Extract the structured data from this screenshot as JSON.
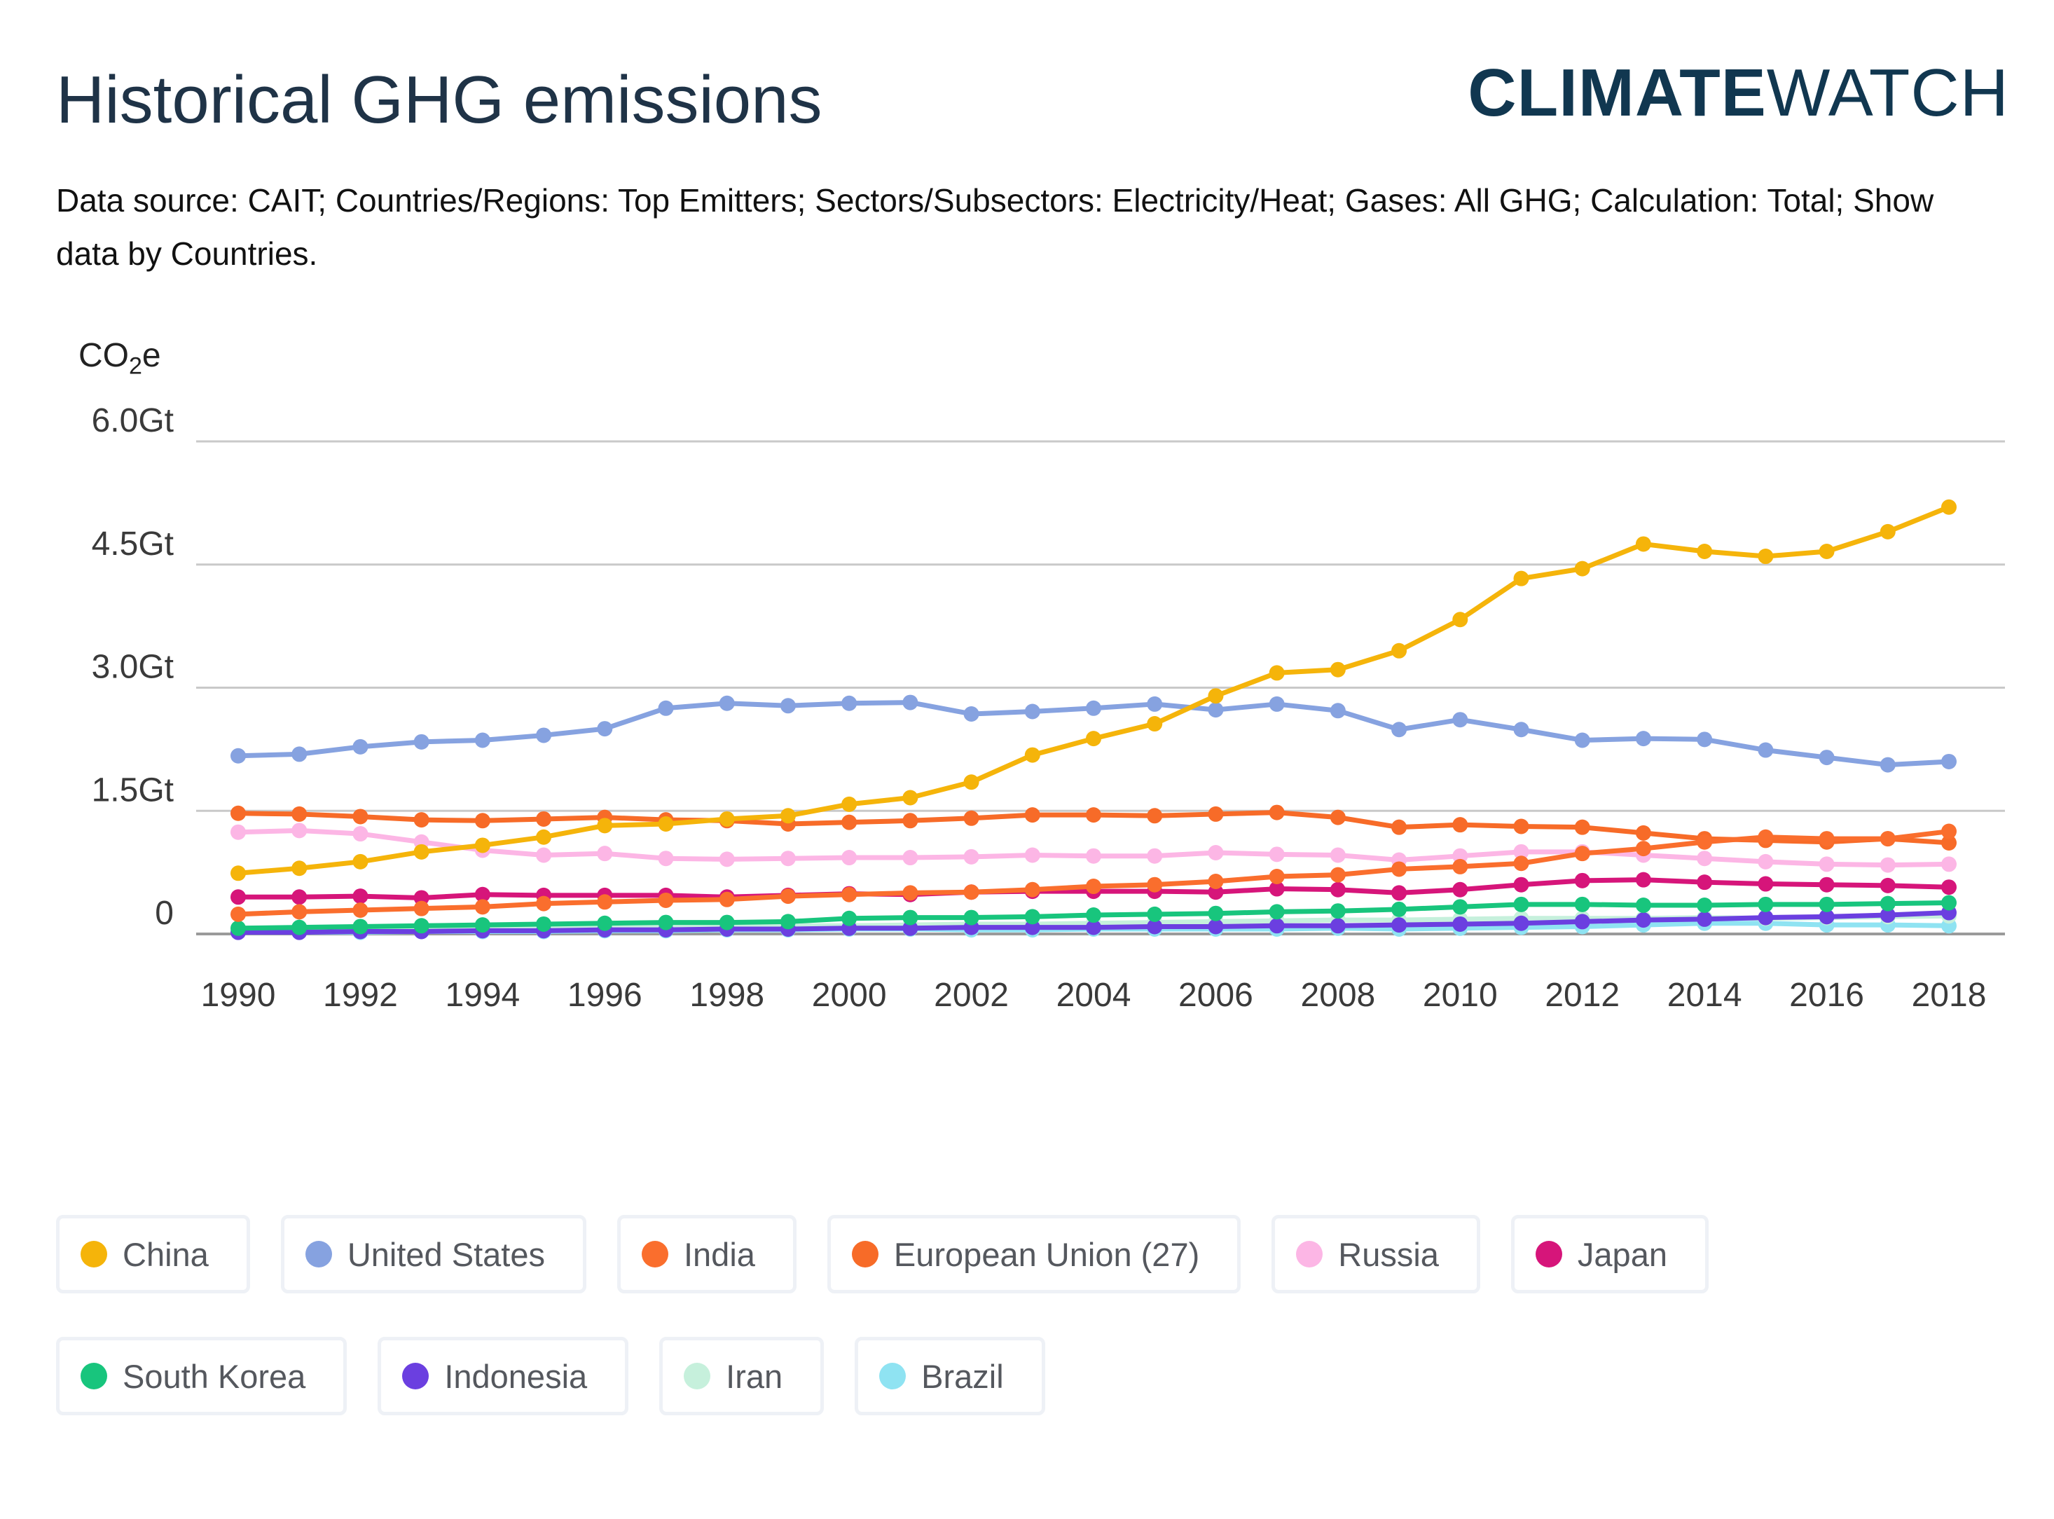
{
  "header": {
    "title": "Historical GHG emissions",
    "brand_bold": "CLIMATE",
    "brand_light": "WATCH",
    "subtitle": "Data source: CAIT; Countries/Regions: Top Emitters; Sectors/Subsectors: Electricity/Heat; Gases: All GHG; Calculation: Total; Show data by Countries."
  },
  "chart_data": {
    "type": "line",
    "title": "Historical GHG emissions",
    "ylabel_prefix": "CO",
    "ylabel_sub": "2",
    "ylabel_suffix": "e",
    "ylim": [
      0,
      6.0
    ],
    "y_ticks": [
      0,
      1.5,
      3.0,
      4.5,
      6.0
    ],
    "y_tick_labels": [
      "0",
      "1.5Gt",
      "3.0Gt",
      "4.5Gt",
      "6.0Gt"
    ],
    "x": [
      1990,
      1991,
      1992,
      1993,
      1994,
      1995,
      1996,
      1997,
      1998,
      1999,
      2000,
      2001,
      2002,
      2003,
      2004,
      2005,
      2006,
      2007,
      2008,
      2009,
      2010,
      2011,
      2012,
      2013,
      2014,
      2015,
      2016,
      2017,
      2018
    ],
    "x_tick_labels": [
      "1990",
      "1992",
      "1994",
      "1996",
      "1998",
      "2000",
      "2002",
      "2004",
      "2006",
      "2008",
      "2010",
      "2012",
      "2014",
      "2016",
      "2018"
    ],
    "grid": "horizontal",
    "legend_position": "bottom",
    "series": [
      {
        "name": "China",
        "color": "#f5b40a",
        "values": [
          0.74,
          0.8,
          0.88,
          1.0,
          1.08,
          1.18,
          1.32,
          1.34,
          1.4,
          1.44,
          1.58,
          1.66,
          1.85,
          2.18,
          2.38,
          2.56,
          2.9,
          3.18,
          3.22,
          3.45,
          3.83,
          4.33,
          4.45,
          4.75,
          4.66,
          4.6,
          4.66,
          4.9,
          5.2
        ]
      },
      {
        "name": "United States",
        "color": "#86a2e0",
        "values": [
          2.17,
          2.19,
          2.28,
          2.34,
          2.36,
          2.42,
          2.5,
          2.75,
          2.81,
          2.78,
          2.81,
          2.82,
          2.68,
          2.71,
          2.75,
          2.8,
          2.73,
          2.8,
          2.72,
          2.49,
          2.61,
          2.49,
          2.36,
          2.38,
          2.37,
          2.24,
          2.15,
          2.06,
          2.1
        ]
      },
      {
        "name": "India",
        "color": "#fa6e2d",
        "values": [
          0.24,
          0.27,
          0.29,
          0.31,
          0.33,
          0.37,
          0.39,
          0.41,
          0.42,
          0.46,
          0.48,
          0.5,
          0.51,
          0.54,
          0.58,
          0.6,
          0.64,
          0.7,
          0.72,
          0.79,
          0.82,
          0.86,
          0.98,
          1.04,
          1.12,
          1.18,
          1.16,
          1.16,
          1.25
        ]
      },
      {
        "name": "European Union (27)",
        "color": "#f76b28",
        "values": [
          1.47,
          1.46,
          1.43,
          1.39,
          1.38,
          1.4,
          1.42,
          1.39,
          1.38,
          1.34,
          1.36,
          1.38,
          1.41,
          1.45,
          1.45,
          1.44,
          1.46,
          1.48,
          1.42,
          1.3,
          1.33,
          1.31,
          1.3,
          1.23,
          1.16,
          1.14,
          1.12,
          1.16,
          1.11
        ]
      },
      {
        "name": "Russia",
        "color": "#fcb6e5",
        "values": [
          1.24,
          1.26,
          1.22,
          1.12,
          1.02,
          0.96,
          0.98,
          0.92,
          0.91,
          0.92,
          0.93,
          0.93,
          0.94,
          0.96,
          0.95,
          0.95,
          0.99,
          0.97,
          0.96,
          0.9,
          0.95,
          1.0,
          1.0,
          0.96,
          0.92,
          0.88,
          0.85,
          0.84,
          0.85
        ]
      },
      {
        "name": "Japan",
        "color": "#d6157a",
        "values": [
          0.45,
          0.45,
          0.46,
          0.44,
          0.48,
          0.47,
          0.47,
          0.47,
          0.45,
          0.47,
          0.49,
          0.48,
          0.51,
          0.52,
          0.52,
          0.52,
          0.51,
          0.55,
          0.54,
          0.5,
          0.54,
          0.6,
          0.65,
          0.66,
          0.63,
          0.61,
          0.6,
          0.59,
          0.57
        ]
      },
      {
        "name": "South Korea",
        "color": "#18c57d",
        "values": [
          0.07,
          0.08,
          0.09,
          0.1,
          0.11,
          0.12,
          0.13,
          0.14,
          0.14,
          0.15,
          0.19,
          0.2,
          0.2,
          0.21,
          0.23,
          0.24,
          0.25,
          0.27,
          0.28,
          0.3,
          0.33,
          0.36,
          0.36,
          0.35,
          0.35,
          0.36,
          0.36,
          0.37,
          0.38
        ]
      },
      {
        "name": "Indonesia",
        "color": "#6b3fe0",
        "values": [
          0.02,
          0.02,
          0.03,
          0.03,
          0.04,
          0.04,
          0.05,
          0.05,
          0.06,
          0.06,
          0.07,
          0.07,
          0.08,
          0.08,
          0.08,
          0.09,
          0.09,
          0.1,
          0.1,
          0.11,
          0.12,
          0.13,
          0.15,
          0.17,
          0.18,
          0.2,
          0.21,
          0.23,
          0.26
        ]
      },
      {
        "name": "Iran",
        "color": "#c6f0dc",
        "values": [
          0.05,
          0.06,
          0.06,
          0.07,
          0.07,
          0.08,
          0.08,
          0.09,
          0.09,
          0.1,
          0.1,
          0.11,
          0.12,
          0.12,
          0.13,
          0.14,
          0.15,
          0.16,
          0.17,
          0.17,
          0.18,
          0.19,
          0.19,
          0.19,
          0.2,
          0.19,
          0.2,
          0.21,
          0.22
        ]
      },
      {
        "name": "Brazil",
        "color": "#8fe3f2",
        "values": [
          0.02,
          0.02,
          0.02,
          0.03,
          0.03,
          0.03,
          0.04,
          0.04,
          0.05,
          0.05,
          0.06,
          0.06,
          0.05,
          0.05,
          0.06,
          0.06,
          0.06,
          0.06,
          0.07,
          0.06,
          0.07,
          0.08,
          0.09,
          0.11,
          0.13,
          0.13,
          0.11,
          0.11,
          0.1
        ]
      }
    ]
  }
}
